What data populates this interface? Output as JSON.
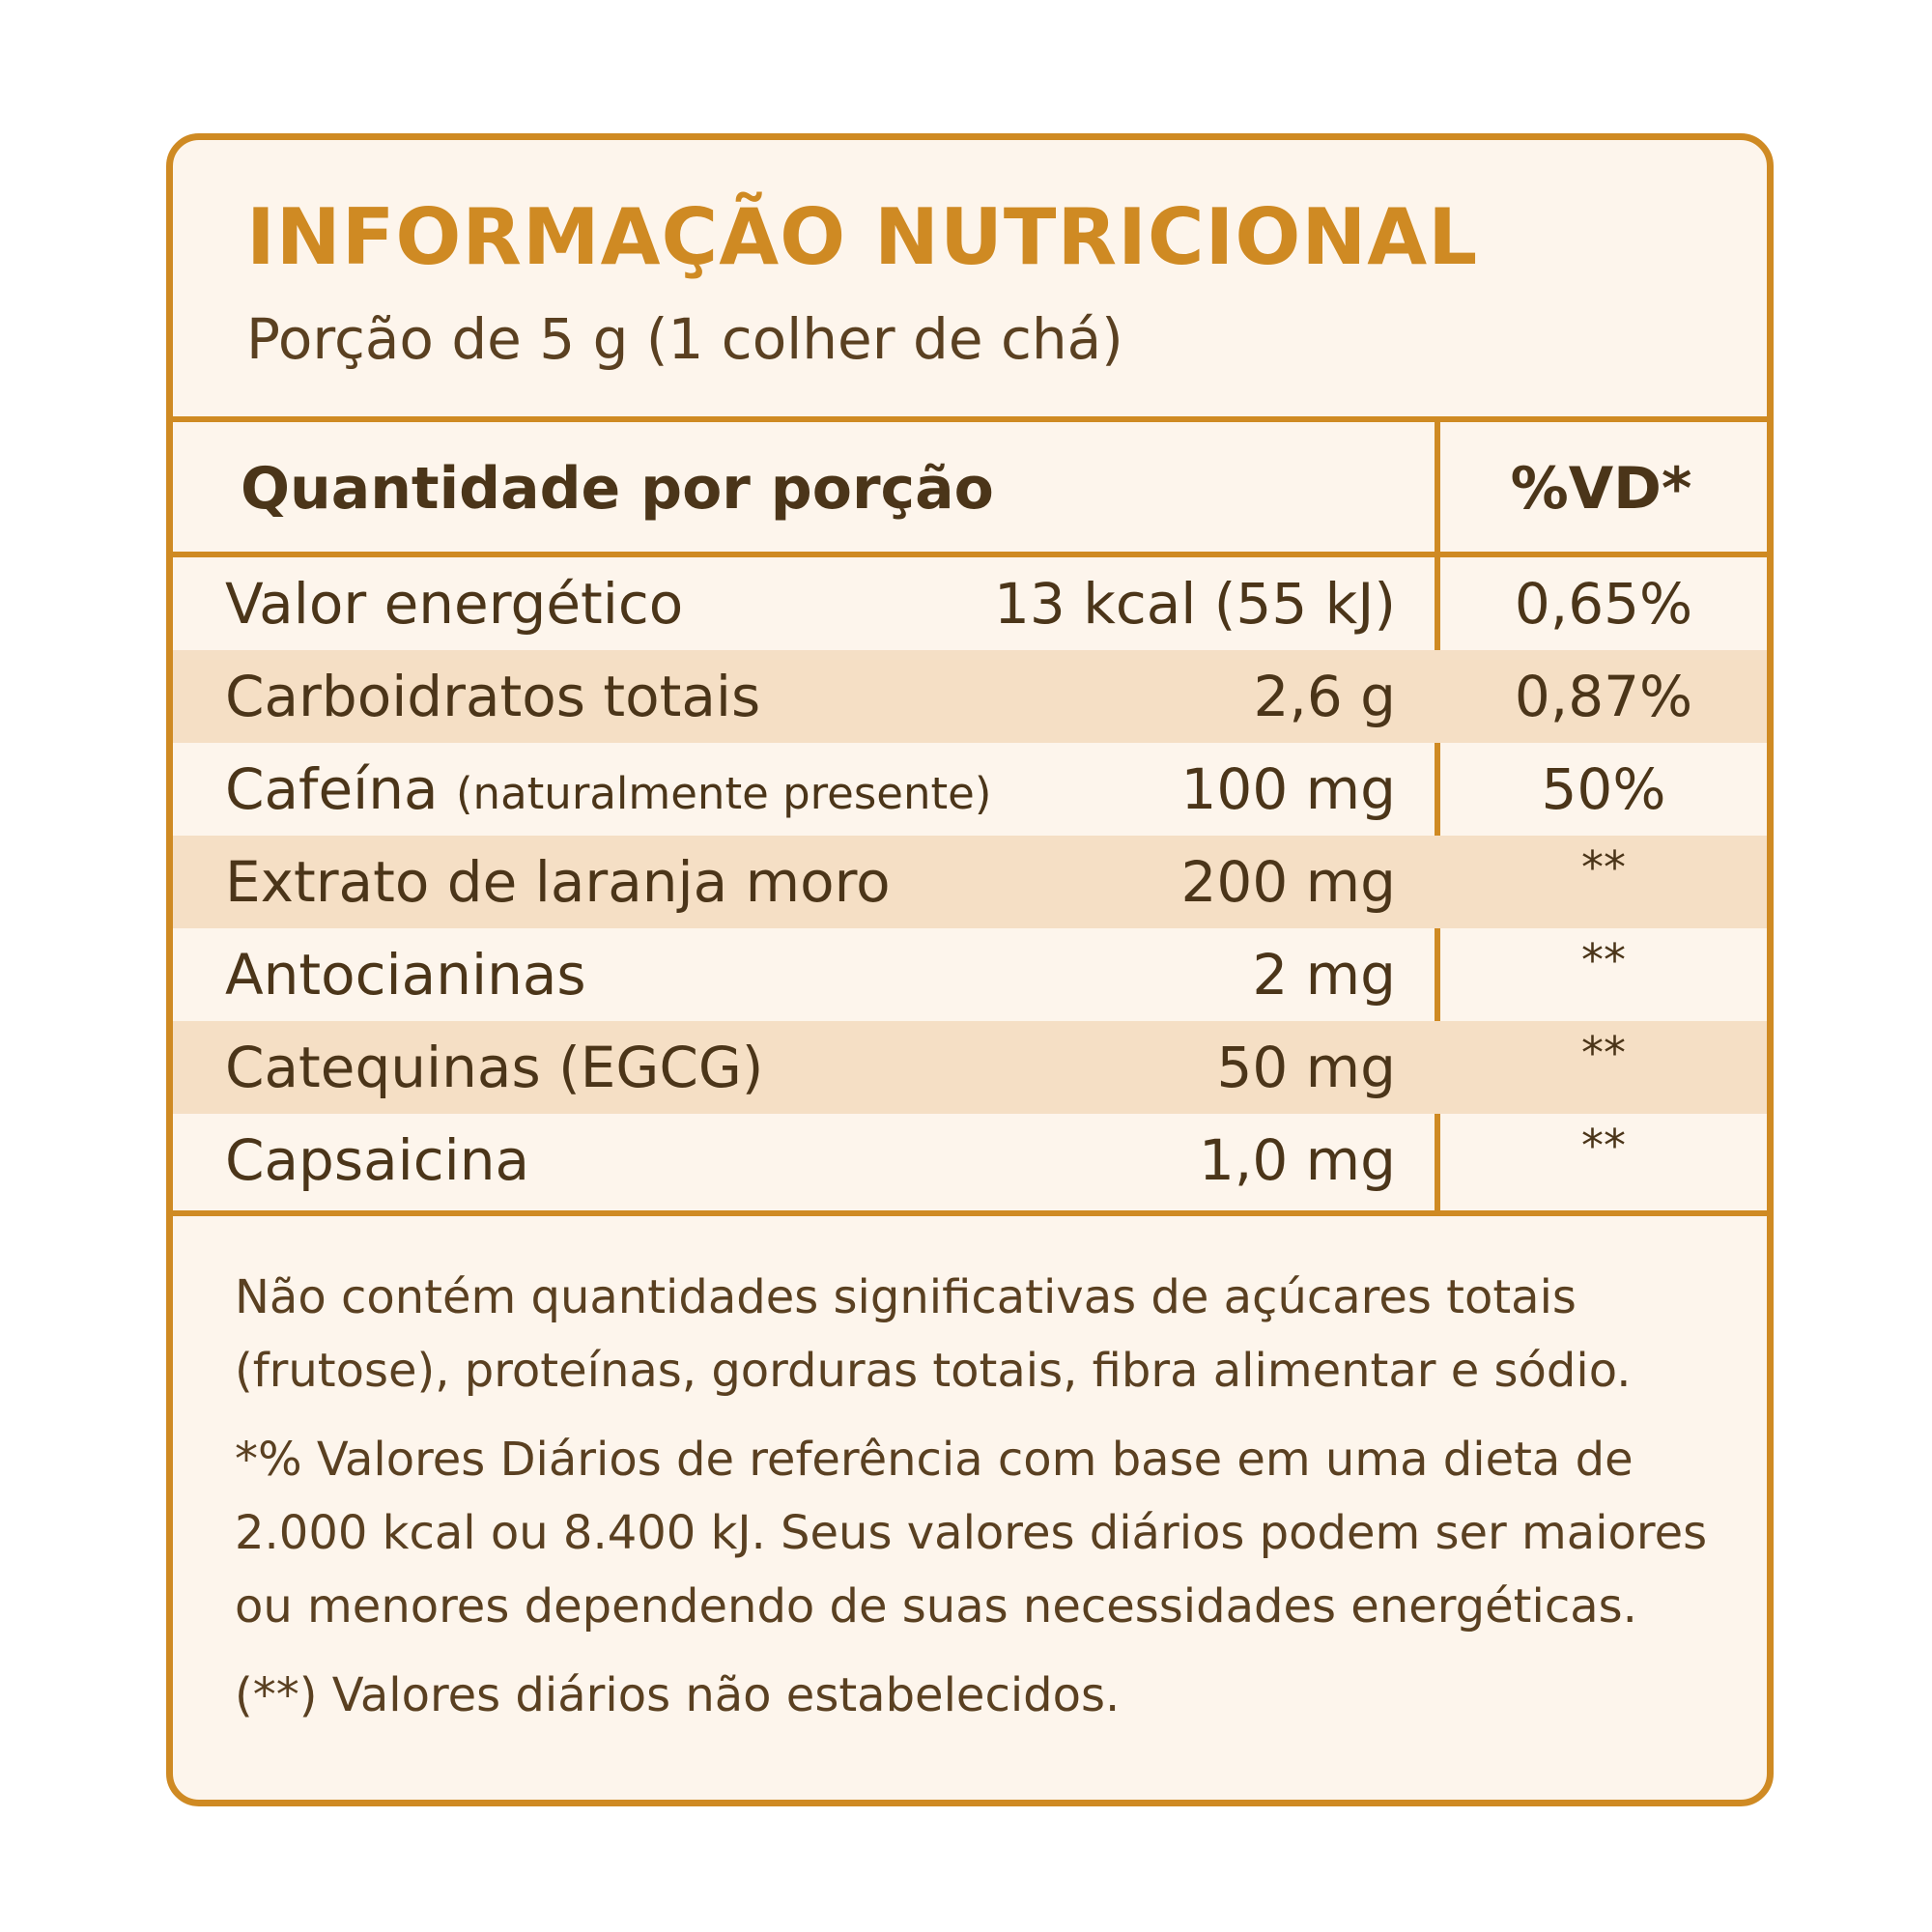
{
  "title": "INFORMAÇÃO NUTRICIONAL",
  "subtitle": "Porção de 5 g (1 colher de chá)",
  "table": {
    "header_quantity": "Quantidade por porção",
    "header_vd": "%VD*",
    "rows": [
      {
        "name": "Valor energético",
        "note": "",
        "amount": "13 kcal (55 kJ)",
        "vd": "0,65%"
      },
      {
        "name": "Carboidratos totais",
        "note": "",
        "amount": "2,6 g",
        "vd": "0,87%"
      },
      {
        "name": "Cafeína",
        "note": "(naturalmente presente)",
        "amount": "100 mg",
        "vd": "50%"
      },
      {
        "name": "Extrato de laranja moro",
        "note": "",
        "amount": "200 mg",
        "vd": "**"
      },
      {
        "name": "Antocianinas",
        "note": "",
        "amount": "2 mg",
        "vd": "**"
      },
      {
        "name": "Catequinas (EGCG)",
        "note": "",
        "amount": "50 mg",
        "vd": "**"
      },
      {
        "name": "Capsaicina",
        "note": "",
        "amount": "1,0 mg",
        "vd": "**"
      }
    ]
  },
  "footer": {
    "line1": "Não contém quantidades significativas de açúcares totais (frutose), proteínas, gorduras totais, fibra alimentar e sódio.",
    "line2": "*% Valores Diários de referência com base em uma dieta de 2.000 kcal ou 8.400 kJ. Seus valores diários podem ser maiores ou menores dependendo de suas necessidades energéticas.",
    "line3": "(**) Valores diários não estabelecidos."
  },
  "colors": {
    "accent": "#cf8a23",
    "background": "#fdf5ec",
    "stripe": "#f5dfc5",
    "text": "#4b3519"
  }
}
